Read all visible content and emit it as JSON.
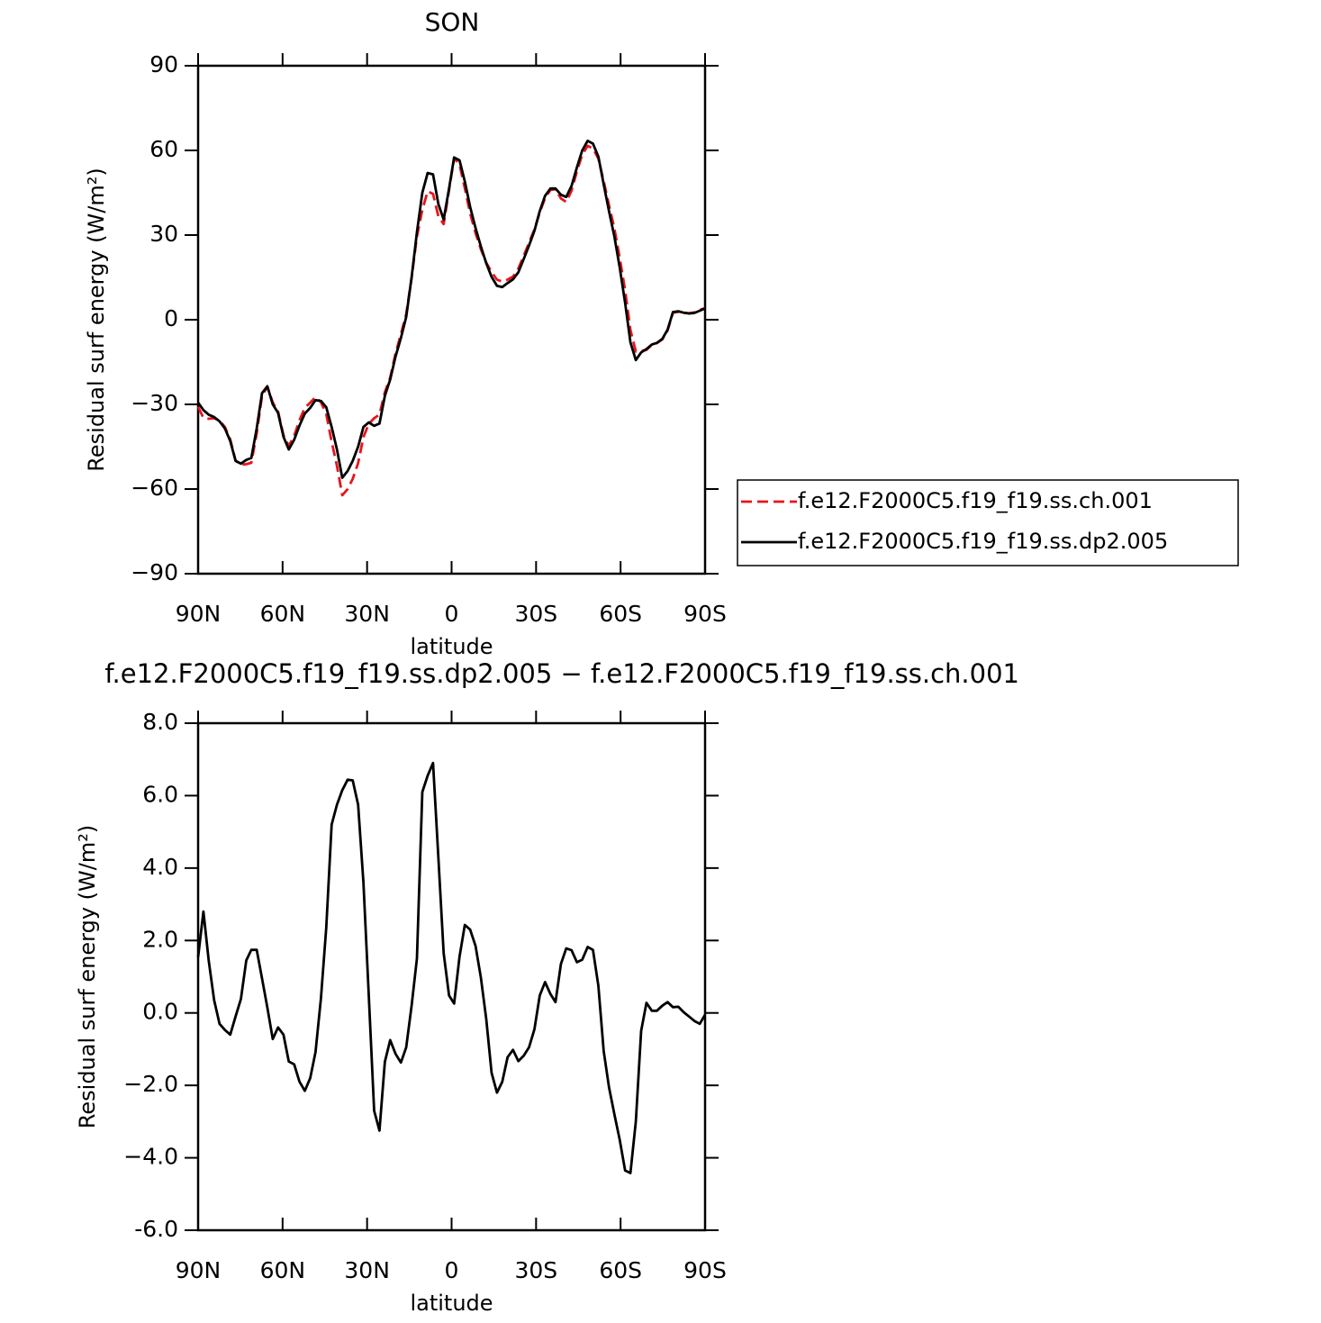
{
  "chart_data": [
    {
      "type": "line",
      "title": "SON",
      "xlabel": "latitude",
      "ylabel": "Residual surf energy (W/m²)",
      "x": [
        90.0,
        88.1,
        86.2,
        84.3,
        82.4,
        80.5,
        78.6,
        76.7,
        74.8,
        72.9,
        71.1,
        69.2,
        67.3,
        65.4,
        63.5,
        61.6,
        59.7,
        57.8,
        55.9,
        54.0,
        52.1,
        50.2,
        48.3,
        46.4,
        44.5,
        42.6,
        40.7,
        38.8,
        36.9,
        35.1,
        33.2,
        31.3,
        29.4,
        27.5,
        25.6,
        23.7,
        21.8,
        19.9,
        18.0,
        16.1,
        14.2,
        12.3,
        10.4,
        8.5,
        6.6,
        4.7,
        2.8,
        0.9,
        -0.9,
        -2.8,
        -4.7,
        -6.6,
        -8.5,
        -10.4,
        -12.3,
        -14.2,
        -16.1,
        -18.0,
        -19.9,
        -21.8,
        -23.7,
        -25.6,
        -27.5,
        -29.4,
        -31.3,
        -33.2,
        -35.1,
        -36.9,
        -38.8,
        -40.7,
        -42.6,
        -44.5,
        -46.4,
        -48.3,
        -50.2,
        -52.1,
        -54.0,
        -55.9,
        -57.8,
        -59.7,
        -61.6,
        -63.5,
        -65.4,
        -67.3,
        -69.2,
        -71.1,
        -72.9,
        -74.8,
        -76.7,
        -78.6,
        -80.5,
        -82.4,
        -84.3,
        -86.2,
        -88.1,
        -90.0
      ],
      "series": [
        {
          "name": "f.e12.F2000C5.f19_f19.ss.ch.001",
          "color": "#e8141c",
          "linestyle": "dashed",
          "values": [
            -30.9,
            -34.8,
            -35.1,
            -34.9,
            -35.7,
            -38.0,
            -42.4,
            -49.9,
            -51.4,
            -51.2,
            -50.7,
            -40.2,
            -27.0,
            -23.8,
            -29.3,
            -32.6,
            -40.9,
            -44.7,
            -41.1,
            -35.6,
            -31.2,
            -29.4,
            -27.4,
            -29.2,
            -33.4,
            -43.2,
            -51.8,
            -62.2,
            -60.0,
            -56.4,
            -50.8,
            -41.6,
            -36.9,
            -34.9,
            -33.6,
            -25.7,
            -20.5,
            -11.9,
            -5.1,
            2.0,
            14.8,
            29.5,
            38.9,
            45.5,
            44.6,
            36.7,
            33.9,
            46.0,
            57.2,
            55.0,
            46.6,
            37.7,
            30.7,
            25.0,
            20.2,
            16.9,
            14.2,
            13.5,
            14.2,
            15.3,
            18.1,
            22.7,
            27.3,
            32.0,
            38.0,
            43.1,
            46.0,
            46.2,
            43.0,
            41.7,
            45.7,
            52.6,
            58.5,
            61.6,
            60.7,
            57.1,
            49.1,
            40.6,
            32.3,
            22.0,
            10.4,
            -3.6,
            -11.3,
            -11.1,
            -10.7,
            -8.9,
            -8.3,
            -7.0,
            -3.8,
            2.5,
            2.8,
            2.5,
            2.3,
            2.6,
            3.5,
            4.1
          ]
        },
        {
          "name": "f.e12.F2000C5.f19_f19.ss.dp2.005",
          "color": "#000000",
          "linestyle": "solid",
          "values": [
            -29.4,
            -32,
            -33.7,
            -34.5,
            -36,
            -38.5,
            -43,
            -50,
            -51,
            -49.7,
            -49,
            -38.5,
            -26,
            -23.6,
            -30,
            -33,
            -41.5,
            -46,
            -42.5,
            -37.5,
            -33.3,
            -31.2,
            -28.5,
            -28.8,
            -31,
            -38,
            -46,
            -56,
            -53.6,
            -50,
            -45,
            -38,
            -36.4,
            -37.6,
            -36.8,
            -27,
            -21.2,
            -13,
            -6.5,
            1,
            15,
            31,
            45,
            52,
            51.5,
            41,
            35.5,
            46.5,
            57.5,
            56.5,
            49,
            40,
            32.5,
            26,
            20,
            15.2,
            12,
            11.6,
            13,
            14.3,
            16.8,
            21.5,
            26.3,
            31.5,
            38.5,
            43.9,
            46.5,
            46.5,
            44.3,
            43.5,
            47.4,
            54,
            60,
            63.4,
            62.4,
            57.8,
            48,
            38.5,
            29.5,
            18.5,
            6,
            -8,
            -14.3,
            -11.6,
            -10.4,
            -8.8,
            -8.2,
            -6.8,
            -3.5,
            2.7,
            3.0,
            2.5,
            2.2,
            2.4,
            3.2,
            4.0
          ]
        }
      ],
      "xlim": [
        90,
        -90
      ],
      "xticks": [
        {
          "value": 90,
          "label": "90N"
        },
        {
          "value": 60,
          "label": "60N"
        },
        {
          "value": 30,
          "label": "30N"
        },
        0,
        {
          "value": -30,
          "label": "30S"
        },
        {
          "value": -60,
          "label": "60S"
        },
        {
          "value": -90,
          "label": "90S"
        }
      ],
      "ylim": [
        -90,
        90
      ],
      "yticks": [
        {
          "value": -90,
          "label": "−90"
        },
        {
          "value": -60,
          "label": "−60"
        },
        {
          "value": -30,
          "label": "−30"
        },
        0,
        30,
        60,
        90
      ],
      "legend": "right"
    },
    {
      "type": "line",
      "title": "f.e12.F2000C5.f19_f19.ss.dp2.005 − f.e12.F2000C5.f19_f19.ss.ch.001",
      "xlabel": "latitude",
      "ylabel": "Residual surf energy (W/m²)",
      "x": [
        90.0,
        88.1,
        86.2,
        84.3,
        82.4,
        80.5,
        78.6,
        76.7,
        74.8,
        72.9,
        71.1,
        69.2,
        67.3,
        65.4,
        63.5,
        61.6,
        59.7,
        57.8,
        55.9,
        54.0,
        52.1,
        50.2,
        48.3,
        46.4,
        44.5,
        42.6,
        40.7,
        38.8,
        36.9,
        35.1,
        33.2,
        31.3,
        29.4,
        27.5,
        25.6,
        23.7,
        21.8,
        19.9,
        18.0,
        16.1,
        14.2,
        12.3,
        10.4,
        8.5,
        6.6,
        4.7,
        2.8,
        0.9,
        -0.9,
        -2.8,
        -4.7,
        -6.6,
        -8.5,
        -10.4,
        -12.3,
        -14.2,
        -16.1,
        -18.0,
        -19.9,
        -21.8,
        -23.7,
        -25.6,
        -27.5,
        -29.4,
        -31.3,
        -33.2,
        -35.1,
        -36.9,
        -38.8,
        -40.7,
        -42.6,
        -44.5,
        -46.4,
        -48.3,
        -50.2,
        -52.1,
        -54.0,
        -55.9,
        -57.8,
        -59.7,
        -61.6,
        -63.5,
        -65.4,
        -67.3,
        -69.2,
        -71.1,
        -72.9,
        -74.8,
        -76.7,
        -78.6,
        -80.5,
        -82.4,
        -84.3,
        -86.2,
        -88.1,
        -90.0
      ],
      "color": "#000000",
      "values": [
        1.54,
        2.8,
        1.42,
        0.35,
        -0.3,
        -0.47,
        -0.6,
        -0.1,
        0.38,
        1.45,
        1.74,
        1.74,
        0.95,
        0.15,
        -0.72,
        -0.4,
        -0.6,
        -1.34,
        -1.42,
        -1.9,
        -2.15,
        -1.8,
        -1.08,
        0.4,
        2.35,
        5.2,
        5.75,
        6.15,
        6.44,
        6.42,
        5.75,
        3.6,
        0.5,
        -2.7,
        -3.25,
        -1.35,
        -0.75,
        -1.13,
        -1.37,
        -0.95,
        0.2,
        1.5,
        6.1,
        6.55,
        6.9,
        4.3,
        1.65,
        0.48,
        0.26,
        1.55,
        2.43,
        2.3,
        1.85,
        0.98,
        -0.17,
        -1.65,
        -2.2,
        -1.9,
        -1.22,
        -1.02,
        -1.33,
        -1.18,
        -0.95,
        -0.45,
        0.48,
        0.85,
        0.52,
        0.3,
        1.35,
        1.78,
        1.73,
        1.4,
        1.47,
        1.82,
        1.74,
        0.75,
        -1.05,
        -2.05,
        -2.8,
        -3.5,
        -4.35,
        -4.42,
        -3.0,
        -0.5,
        0.28,
        0.06,
        0.06,
        0.2,
        0.3,
        0.16,
        0.17,
        0.02,
        -0.1,
        -0.22,
        -0.3,
        -0.05
      ],
      "xlim": [
        90,
        -90
      ],
      "xticks": [
        {
          "value": 90,
          "label": "90N"
        },
        {
          "value": 60,
          "label": "60N"
        },
        {
          "value": 30,
          "label": "30N"
        },
        0,
        {
          "value": -30,
          "label": "30S"
        },
        {
          "value": -60,
          "label": "60S"
        },
        {
          "value": -90,
          "label": "90S"
        }
      ],
      "ylim": [
        -6,
        8
      ],
      "yticks": [
        {
          "value": -6,
          "label": "-6.0"
        },
        {
          "value": -4,
          "label": "−4.0"
        },
        {
          "value": -2,
          "label": "−2.0"
        },
        {
          "value": 0,
          "label": "0.0"
        },
        {
          "value": 2,
          "label": "2.0"
        },
        {
          "value": 4,
          "label": "4.0"
        },
        {
          "value": 6,
          "label": "6.0"
        },
        {
          "value": 8,
          "label": "8.0"
        }
      ]
    }
  ]
}
